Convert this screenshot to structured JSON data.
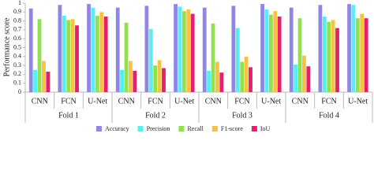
{
  "chart_data": {
    "type": "bar",
    "y_label": "Performance score",
    "groups": [
      "Fold 1",
      "Fold 2",
      "Fold 3",
      "Fold 4"
    ],
    "categories": [
      "CNN",
      "FCN",
      "U-Net",
      "CNN",
      "FCN",
      "U-Net",
      "CNN",
      "FCN",
      "U-Net",
      "CNN",
      "FCN",
      "U-Net"
    ],
    "series": [
      {
        "name": "Accuracy",
        "color": "#8f86e6",
        "values": [
          0.94,
          0.98,
          0.99,
          0.95,
          0.97,
          0.99,
          0.95,
          0.97,
          0.99,
          0.95,
          0.98,
          0.99
        ]
      },
      {
        "name": "Precision",
        "color": "#55eef2",
        "values": [
          0.25,
          0.86,
          0.95,
          0.25,
          0.71,
          0.96,
          0.24,
          0.72,
          0.93,
          0.31,
          0.85,
          0.98
        ]
      },
      {
        "name": "Recall",
        "color": "#92e04e",
        "values": [
          0.82,
          0.81,
          0.86,
          0.78,
          0.3,
          0.91,
          0.77,
          0.34,
          0.87,
          0.83,
          0.79,
          0.83
        ]
      },
      {
        "name": "F1-score",
        "color": "#f7c244",
        "values": [
          0.35,
          0.82,
          0.9,
          0.35,
          0.36,
          0.93,
          0.34,
          0.4,
          0.91,
          0.41,
          0.81,
          0.88
        ]
      },
      {
        "name": "IoU",
        "color": "#e2206c",
        "values": [
          0.23,
          0.75,
          0.85,
          0.24,
          0.27,
          0.88,
          0.22,
          0.28,
          0.85,
          0.29,
          0.72,
          0.83
        ]
      }
    ],
    "ylim": [
      0,
      1
    ],
    "yticks": [
      0,
      0.1,
      0.2,
      0.3,
      0.4,
      0.5,
      0.6,
      0.7,
      0.8,
      0.9,
      1
    ],
    "grid": false,
    "legend": "bottom"
  }
}
